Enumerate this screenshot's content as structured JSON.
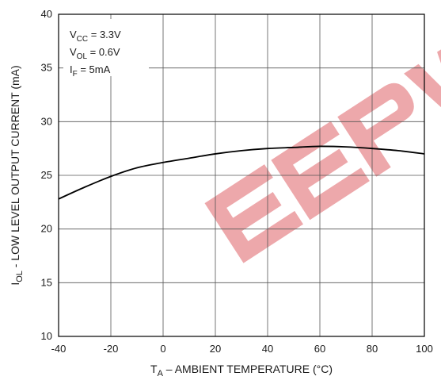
{
  "chart_data": {
    "type": "line",
    "title": "",
    "xlabel": {
      "main": "T",
      "sub": "A",
      "rest": " – AMBIENT TEMPERATURE (°C)"
    },
    "ylabel": {
      "main": "I",
      "sub": "OL",
      "rest": " - LOW LEVEL OUTPUT CURRENT (mA)"
    },
    "xlim": [
      -40,
      100
    ],
    "ylim": [
      10,
      40
    ],
    "xticks": [
      -40,
      -20,
      0,
      20,
      40,
      60,
      80,
      100
    ],
    "yticks": [
      10,
      15,
      20,
      25,
      30,
      35,
      40
    ],
    "grid": true,
    "legend_position": "none",
    "annotations": [
      {
        "main": "V",
        "sub": "CC",
        "rest": " = 3.3V"
      },
      {
        "main": "V",
        "sub": "OL",
        "rest": " = 0.6V"
      },
      {
        "main": "I",
        "sub": "F",
        "rest": " = 5mA"
      }
    ],
    "series": [
      {
        "color": "#000000",
        "x": [
          -40,
          -30,
          -20,
          -10,
          0,
          10,
          20,
          30,
          40,
          50,
          60,
          70,
          80,
          90,
          100
        ],
        "y": [
          22.8,
          23.9,
          24.9,
          25.7,
          26.2,
          26.6,
          27.0,
          27.3,
          27.5,
          27.6,
          27.7,
          27.65,
          27.5,
          27.3,
          27.0
        ]
      }
    ]
  },
  "watermark": {
    "text": "EEPW",
    "color": "#e88b8f"
  }
}
